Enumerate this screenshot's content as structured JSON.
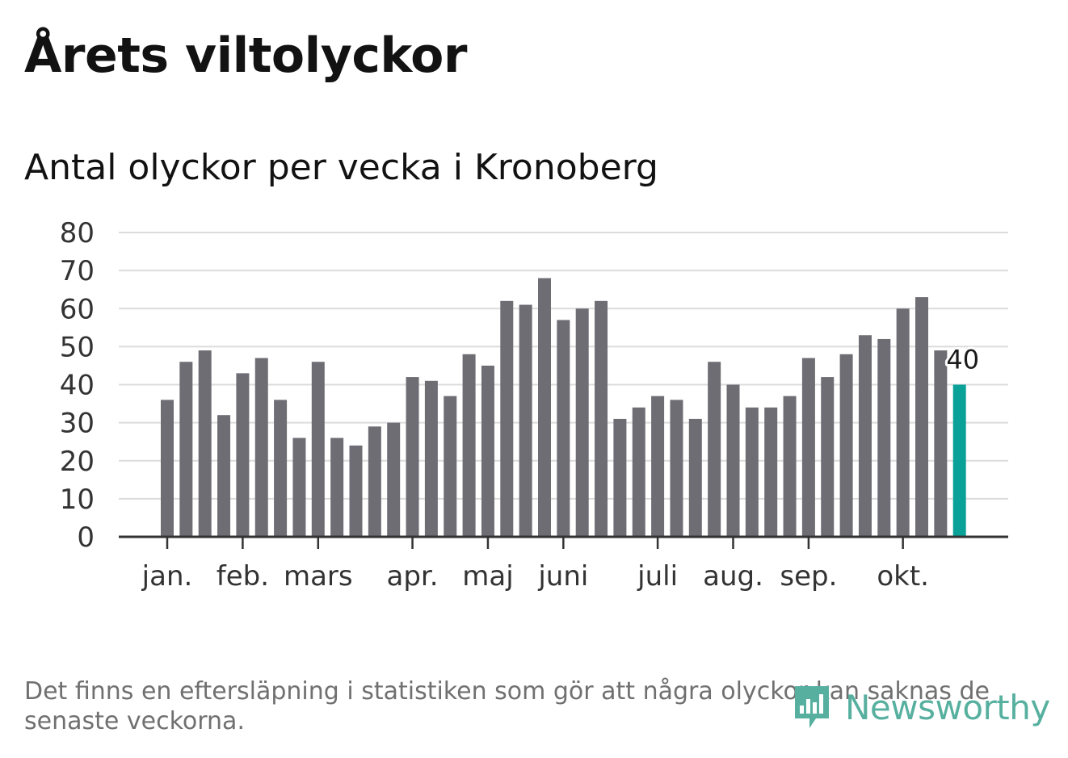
{
  "title": "Årets viltolyckor",
  "subtitle": "Antal olyckor per vecka i Kronoberg",
  "footnote": "Det finns en eftersläpning i statistiken som gör att några olyckor kan saknas de senaste veckorna.",
  "logo": {
    "text": "Newsworthy",
    "icon": "newsworthy-logo-icon",
    "color": "#57b09f"
  },
  "colors": {
    "bar": "#6e6d74",
    "highlight": "#0aa198",
    "grid": "#dcdcdc",
    "axis": "#333333"
  },
  "chart_data": {
    "type": "bar",
    "title": "Antal olyckor per vecka i Kronoberg",
    "xlabel": "",
    "ylabel": "",
    "ylim": [
      0,
      80
    ],
    "yticks": [
      0,
      10,
      20,
      30,
      40,
      50,
      60,
      70,
      80
    ],
    "values": [
      36,
      46,
      49,
      32,
      43,
      47,
      36,
      26,
      46,
      26,
      24,
      29,
      30,
      42,
      41,
      37,
      48,
      45,
      62,
      61,
      68,
      57,
      60,
      62,
      31,
      34,
      37,
      36,
      31,
      46,
      40,
      34,
      34,
      37,
      47,
      42,
      48,
      53,
      52,
      60,
      63,
      49,
      40
    ],
    "highlight_index": 42,
    "highlight_label": "40",
    "month_ticks": [
      {
        "label": "jan.",
        "bar_index": 0
      },
      {
        "label": "feb.",
        "bar_index": 4
      },
      {
        "label": "mars",
        "bar_index": 8
      },
      {
        "label": "apr.",
        "bar_index": 13
      },
      {
        "label": "maj",
        "bar_index": 17
      },
      {
        "label": "juni",
        "bar_index": 21
      },
      {
        "label": "juli",
        "bar_index": 26
      },
      {
        "label": "aug.",
        "bar_index": 30
      },
      {
        "label": "sep.",
        "bar_index": 34
      },
      {
        "label": "okt.",
        "bar_index": 39
      }
    ]
  }
}
